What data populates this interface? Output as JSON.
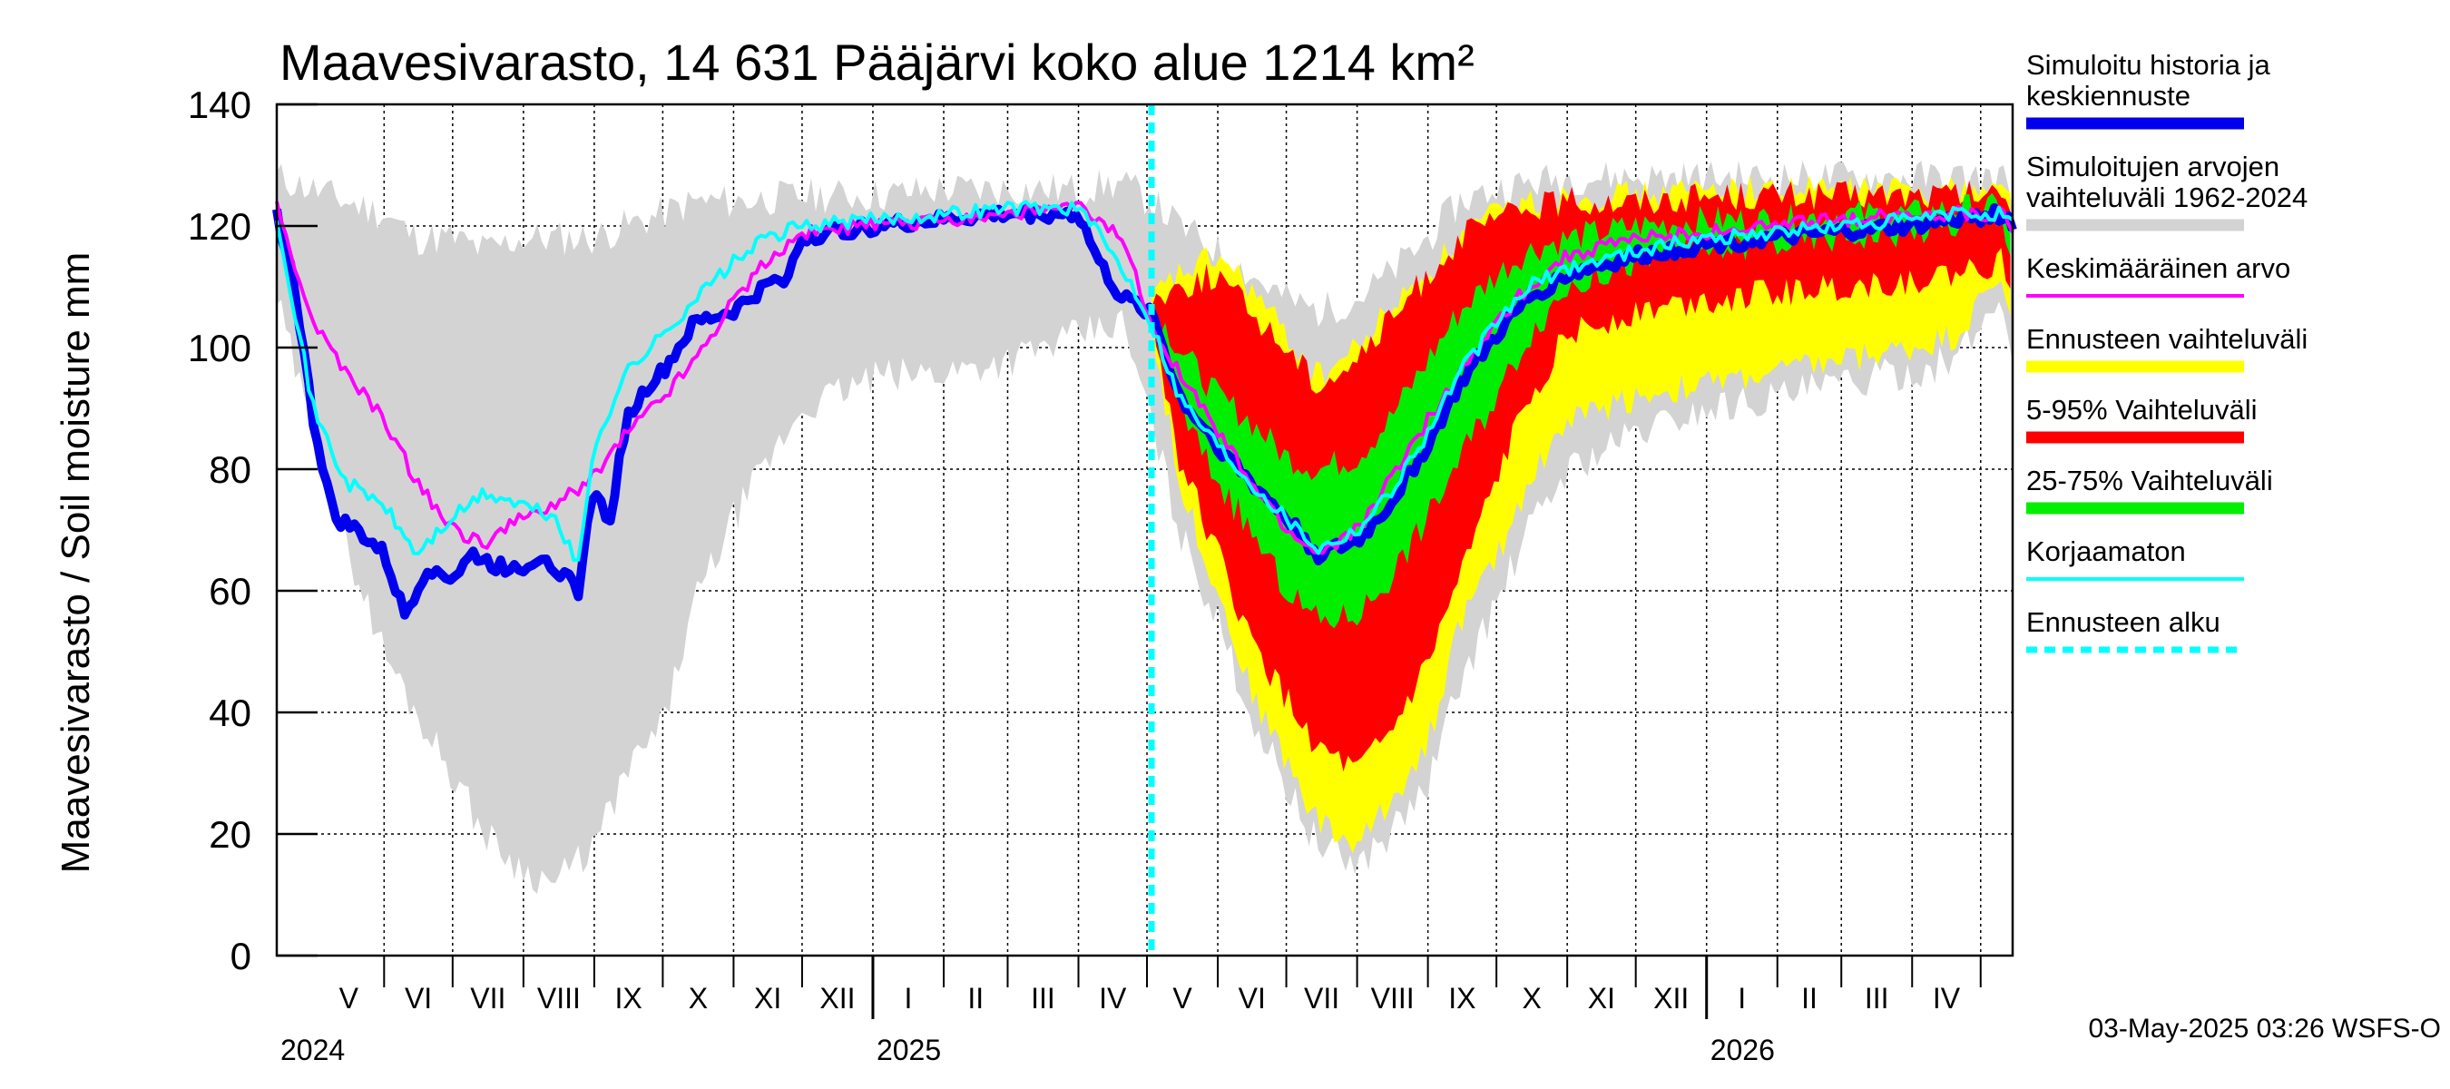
{
  "chart_data": {
    "type": "area",
    "title": "Maavesivarasto, 14 631 Pääjärvi koko alue 1214 km²",
    "ylabel": "Maavesivarasto / Soil moisture   mm",
    "ylim": [
      0,
      140
    ],
    "yticks": [
      "0",
      "20",
      "40",
      "60",
      "80",
      "100",
      "120",
      "140"
    ],
    "xlim": [
      "2024-04-15",
      "2026-05-15"
    ],
    "forecast_start": "2025-05-03",
    "months": [
      {
        "label": "V",
        "start": "2024-05-01"
      },
      {
        "label": "VI",
        "start": "2024-06-01"
      },
      {
        "label": "VII",
        "start": "2024-07-01"
      },
      {
        "label": "VIII",
        "start": "2024-08-01"
      },
      {
        "label": "IX",
        "start": "2024-09-01"
      },
      {
        "label": "X",
        "start": "2024-10-01"
      },
      {
        "label": "XI",
        "start": "2024-11-01"
      },
      {
        "label": "XII",
        "start": "2024-12-01"
      },
      {
        "label": "I",
        "start": "2025-01-01"
      },
      {
        "label": "II",
        "start": "2025-02-01"
      },
      {
        "label": "III",
        "start": "2025-03-01"
      },
      {
        "label": "IV",
        "start": "2025-04-01"
      },
      {
        "label": "V",
        "start": "2025-05-01"
      },
      {
        "label": "VI",
        "start": "2025-06-01"
      },
      {
        "label": "VII",
        "start": "2025-07-01"
      },
      {
        "label": "VIII",
        "start": "2025-08-01"
      },
      {
        "label": "IX",
        "start": "2025-09-01"
      },
      {
        "label": "X",
        "start": "2025-10-01"
      },
      {
        "label": "XI",
        "start": "2025-11-01"
      },
      {
        "label": "XII",
        "start": "2025-12-01"
      },
      {
        "label": "I",
        "start": "2026-01-01"
      },
      {
        "label": "II",
        "start": "2026-02-01"
      },
      {
        "label": "III",
        "start": "2026-03-01"
      },
      {
        "label": "IV",
        "start": "2026-04-01"
      },
      {
        "label": "",
        "start": "2026-05-01"
      }
    ],
    "years": [
      {
        "label": "2024",
        "start": "2024-04-15"
      },
      {
        "label": "2025",
        "start": "2025-01-01"
      },
      {
        "label": "2026",
        "start": "2026-01-01"
      }
    ],
    "series": [
      {
        "name": "Simuloitujen arvojen vaihteluväli 1962-2024",
        "style": "band",
        "color": "#d3d3d3",
        "x": [
          "2024-04-15",
          "2024-05-01",
          "2024-05-15",
          "2024-06-01",
          "2024-06-15",
          "2024-07-01",
          "2024-07-15",
          "2024-08-01",
          "2024-08-15",
          "2024-09-01",
          "2024-09-15",
          "2024-10-01",
          "2024-10-15",
          "2024-11-01",
          "2024-12-01",
          "2025-01-01",
          "2025-02-01",
          "2025-03-01",
          "2025-04-01",
          "2025-04-20",
          "2025-05-03",
          "2025-05-15",
          "2025-06-01",
          "2025-06-15",
          "2025-07-01",
          "2025-07-15",
          "2025-08-01",
          "2025-08-15",
          "2025-09-01",
          "2025-09-15",
          "2025-10-01",
          "2025-10-15",
          "2025-11-01",
          "2025-12-01",
          "2026-01-01",
          "2026-02-01",
          "2026-03-01",
          "2026-04-01",
          "2026-04-20",
          "2026-05-10",
          "2026-05-15"
        ],
        "low": [
          108,
          85,
          68,
          50,
          40,
          30,
          20,
          14,
          12,
          18,
          30,
          38,
          58,
          72,
          90,
          95,
          96,
          98,
          102,
          104,
          88,
          70,
          55,
          40,
          28,
          18,
          15,
          20,
          28,
          45,
          58,
          70,
          80,
          86,
          90,
          92,
          94,
          96,
          98,
          108,
          100
        ],
        "high": [
          128,
          126,
          124,
          122,
          118,
          118,
          116,
          118,
          118,
          118,
          120,
          122,
          124,
          124,
          125,
          125,
          126,
          126,
          126,
          127,
          124,
          120,
          116,
          112,
          108,
          106,
          108,
          112,
          118,
          124,
          126,
          127,
          128,
          128,
          128,
          128,
          128,
          128,
          128,
          128,
          126
        ]
      },
      {
        "name": "Ennusteen vaihteluväli",
        "style": "band",
        "color": "#ffff00",
        "x": [
          "2025-05-03",
          "2025-05-15",
          "2025-06-01",
          "2025-06-15",
          "2025-07-01",
          "2025-07-15",
          "2025-08-01",
          "2025-08-15",
          "2025-09-01",
          "2025-09-15",
          "2025-10-01",
          "2025-10-15",
          "2025-11-01",
          "2025-12-01",
          "2026-01-01",
          "2026-02-01",
          "2026-03-01",
          "2026-04-01",
          "2026-04-20",
          "2026-05-10",
          "2026-05-15"
        ],
        "low": [
          104,
          78,
          60,
          44,
          32,
          22,
          18,
          25,
          35,
          55,
          65,
          78,
          88,
          92,
          94,
          96,
          98,
          100,
          102,
          112,
          104
        ],
        "high": [
          108,
          112,
          115,
          110,
          102,
          95,
          100,
          106,
          112,
          118,
          122,
          124,
          125,
          125,
          126,
          126,
          126,
          126,
          126,
          126,
          125
        ]
      },
      {
        "name": "5-95% Vaihteluväli",
        "style": "band",
        "color": "#ff0000",
        "x": [
          "2025-05-03",
          "2025-05-15",
          "2025-06-01",
          "2025-06-15",
          "2025-07-01",
          "2025-07-15",
          "2025-08-01",
          "2025-08-15",
          "2025-09-01",
          "2025-09-15",
          "2025-10-01",
          "2025-10-15",
          "2025-11-01",
          "2025-12-01",
          "2026-01-01",
          "2026-02-01",
          "2026-03-01",
          "2026-04-01",
          "2026-04-20",
          "2026-05-10",
          "2026-05-15"
        ],
        "low": [
          105,
          82,
          66,
          52,
          42,
          34,
          30,
          36,
          48,
          62,
          78,
          92,
          102,
          106,
          108,
          109,
          110,
          111,
          112,
          114,
          110
        ],
        "high": [
          108,
          110,
          112,
          106,
          100,
          94,
          98,
          104,
          112,
          118,
          121,
          123,
          124,
          124,
          125,
          125,
          125,
          125,
          125,
          125,
          124
        ]
      },
      {
        "name": "25-75% Vaihteluväli",
        "style": "band",
        "color": "#00ee00",
        "x": [
          "2025-05-03",
          "2025-05-15",
          "2025-06-01",
          "2025-06-15",
          "2025-07-01",
          "2025-07-15",
          "2025-08-01",
          "2025-08-15",
          "2025-09-01",
          "2025-09-15",
          "2025-10-01",
          "2025-10-15",
          "2025-11-01",
          "2025-12-01",
          "2026-01-01",
          "2026-02-01",
          "2026-03-01",
          "2026-04-01",
          "2026-04-20",
          "2026-05-10",
          "2026-05-15"
        ],
        "low": [
          105,
          90,
          78,
          70,
          60,
          55,
          56,
          62,
          72,
          82,
          92,
          102,
          110,
          114,
          116,
          117,
          118,
          119,
          120,
          121,
          116
        ],
        "high": [
          107,
          100,
          92,
          88,
          82,
          80,
          82,
          88,
          98,
          106,
          112,
          116,
          118,
          120,
          121,
          121,
          122,
          122,
          123,
          123,
          121
        ]
      },
      {
        "name": "Simuloitu historia ja keskiennuste",
        "style": "line",
        "color": "#0000ee",
        "width": 10,
        "x": [
          "2024-04-15",
          "2024-04-22",
          "2024-05-01",
          "2024-05-10",
          "2024-05-20",
          "2024-06-01",
          "2024-06-10",
          "2024-06-20",
          "2024-07-01",
          "2024-07-10",
          "2024-07-20",
          "2024-08-01",
          "2024-08-10",
          "2024-08-20",
          "2024-08-25",
          "2024-09-01",
          "2024-09-07",
          "2024-09-15",
          "2024-09-25",
          "2024-10-01",
          "2024-10-15",
          "2024-11-01",
          "2024-11-15",
          "2024-11-25",
          "2024-12-01",
          "2024-12-15",
          "2025-01-01",
          "2025-02-01",
          "2025-03-01",
          "2025-04-01",
          "2025-04-10",
          "2025-04-20",
          "2025-05-03",
          "2025-05-15",
          "2025-06-01",
          "2025-06-15",
          "2025-07-01",
          "2025-07-15",
          "2025-08-01",
          "2025-08-15",
          "2025-09-01",
          "2025-09-15",
          "2025-10-01",
          "2025-10-15",
          "2025-11-01",
          "2025-12-01",
          "2026-01-01",
          "2026-02-01",
          "2026-03-01",
          "2026-04-01",
          "2026-04-20",
          "2026-05-10",
          "2026-05-15"
        ],
        "y": [
          122,
          112,
          88,
          72,
          70,
          66,
          56,
          64,
          62,
          66,
          64,
          64,
          66,
          62,
          60,
          78,
          70,
          88,
          94,
          96,
          104,
          106,
          110,
          112,
          118,
          119,
          120,
          121,
          122,
          122,
          114,
          108,
          106,
          92,
          84,
          78,
          72,
          66,
          68,
          74,
          84,
          94,
          102,
          108,
          112,
          115,
          117,
          118,
          119,
          120,
          121,
          122,
          120
        ]
      },
      {
        "name": "Keskimääräinen arvo",
        "style": "line",
        "color": "#ff00ff",
        "width": 4,
        "x": [
          "2024-04-15",
          "2024-05-01",
          "2024-05-15",
          "2024-06-01",
          "2024-06-15",
          "2024-07-01",
          "2024-07-15",
          "2024-08-01",
          "2024-08-15",
          "2024-09-01",
          "2024-09-15",
          "2024-10-01",
          "2024-10-15",
          "2024-11-01",
          "2024-11-15",
          "2024-12-01",
          "2025-01-01",
          "2025-02-01",
          "2025-03-01",
          "2025-04-01",
          "2025-04-20",
          "2025-05-03",
          "2025-05-15",
          "2025-06-01",
          "2025-06-15",
          "2025-07-01",
          "2025-07-15",
          "2025-08-01",
          "2025-08-15",
          "2025-09-01",
          "2025-09-15",
          "2025-10-01",
          "2025-10-15",
          "2025-11-01",
          "2025-12-01",
          "2026-01-01",
          "2026-02-01",
          "2026-03-01",
          "2026-04-01",
          "2026-04-20",
          "2026-05-10",
          "2026-05-15"
        ],
        "y": [
          123,
          104,
          96,
          88,
          78,
          70,
          68,
          72,
          74,
          79,
          86,
          92,
          98,
          108,
          114,
          119,
          120,
          121,
          122,
          123,
          118,
          104,
          96,
          86,
          78,
          70,
          66,
          70,
          78,
          88,
          96,
          104,
          110,
          115,
          118,
          119,
          120,
          121,
          122,
          122,
          122,
          120
        ]
      },
      {
        "name": "Korjaamaton",
        "style": "line",
        "color": "#00ffff",
        "width": 4,
        "x": [
          "2024-04-15",
          "2024-05-01",
          "2024-05-15",
          "2024-06-01",
          "2024-06-15",
          "2024-07-01",
          "2024-07-15",
          "2024-08-01",
          "2024-08-15",
          "2024-08-25",
          "2024-09-01",
          "2024-09-15",
          "2024-10-01",
          "2024-10-15",
          "2024-11-01",
          "2024-11-15",
          "2024-12-01",
          "2025-01-01",
          "2025-02-01",
          "2025-03-01",
          "2025-04-01",
          "2025-04-15",
          "2025-04-25",
          "2025-05-03",
          "2025-05-15",
          "2025-06-01",
          "2025-06-15",
          "2025-07-01",
          "2025-07-15",
          "2025-08-01",
          "2025-08-15",
          "2025-09-01",
          "2025-09-15",
          "2025-10-01",
          "2025-10-15",
          "2025-11-01",
          "2025-12-01",
          "2026-01-01",
          "2026-02-01",
          "2026-03-01",
          "2026-04-01",
          "2026-04-20",
          "2026-05-10",
          "2026-05-15"
        ],
        "y": [
          122,
          90,
          78,
          74,
          66,
          72,
          76,
          74,
          72,
          64,
          84,
          96,
          102,
          108,
          114,
          118,
          120,
          121,
          122,
          123,
          123,
          116,
          110,
          104,
          92,
          84,
          78,
          72,
          67,
          70,
          76,
          86,
          96,
          104,
          110,
          113,
          116,
          118,
          119,
          120,
          121,
          122,
          122,
          120
        ]
      }
    ],
    "legend": [
      {
        "label": "Simuloitu historia ja keskiennuste",
        "color": "#0000ee",
        "style": "thick"
      },
      {
        "label": "Simuloitujen arvojen vaihteluväli 1962-2024",
        "color": "#d3d3d3",
        "style": "thick"
      },
      {
        "label": "Keskimääräinen arvo",
        "color": "#ff00ff",
        "style": "thin"
      },
      {
        "label": "Ennusteen vaihteluväli",
        "color": "#ffff00",
        "style": "thick"
      },
      {
        "label": "5-95% Vaihteluväli",
        "color": "#ff0000",
        "style": "thick"
      },
      {
        "label": "25-75% Vaihteluväli",
        "color": "#00ee00",
        "style": "thick"
      },
      {
        "label": "Korjaamaton",
        "color": "#00ffff",
        "style": "thin"
      },
      {
        "label": "Ennusteen alku",
        "color": "#00ffff",
        "style": "dashed"
      }
    ],
    "legend_position": "right",
    "grid": true,
    "footer": "03-May-2025 03:26 WSFS-O"
  }
}
